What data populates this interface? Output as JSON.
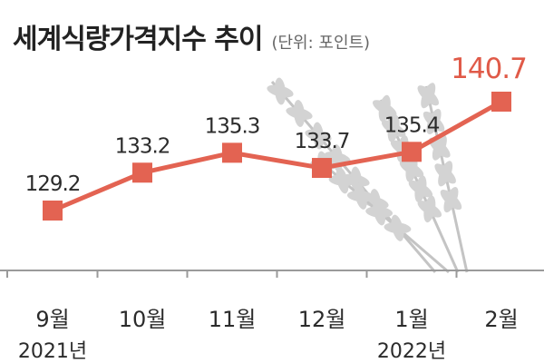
{
  "chart_data": {
    "type": "line",
    "title": "세계식량가격지수 추이",
    "unit_note": "(단위: 포인트)",
    "categories": [
      "9월",
      "10월",
      "11월",
      "12월",
      "1월",
      "2월"
    ],
    "year_labels": [
      {
        "under": "9월",
        "label": "2021년"
      },
      {
        "under": "1월",
        "label": "2022년"
      }
    ],
    "series": [
      {
        "values": [
          129.2,
          133.2,
          135.3,
          133.7,
          135.4,
          140.7
        ]
      }
    ],
    "value_labels": [
      "129.2",
      "133.2",
      "135.3",
      "133.7",
      "135.4",
      "140.7"
    ],
    "ylim": [
      127,
      143
    ],
    "grid": false,
    "colors": {
      "line": "#e36352",
      "highlight_label": "#e05a48",
      "label": "#2b2b2b",
      "baseline": "#9a9a9a",
      "wheat": "#d3d3d3",
      "wheat_dark": "#c4c4c4"
    }
  }
}
